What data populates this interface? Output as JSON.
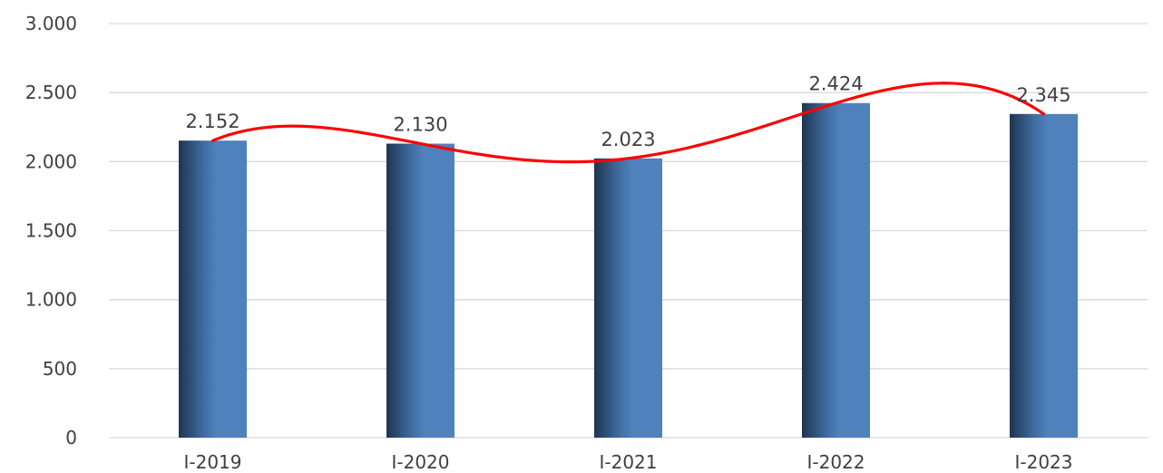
{
  "chart_data": {
    "type": "bar",
    "categories": [
      "I-2019",
      "I-2020",
      "I-2021",
      "I-2022",
      "I-2023"
    ],
    "values": [
      2152,
      2130,
      2023,
      2424,
      2345
    ],
    "data_labels": [
      "2.152",
      "2.130",
      "2.023",
      "2.424",
      "2.345"
    ],
    "y_ticks": [
      0,
      500,
      1000,
      1500,
      2000,
      2500,
      3000
    ],
    "y_tick_labels": [
      "0",
      "500",
      "1.000",
      "1.500",
      "2.000",
      "2.500",
      "3.000"
    ],
    "ylim": [
      0,
      3000
    ],
    "grid": true,
    "legend": "none",
    "trendline": "polynomial",
    "colors": {
      "bar_light": "#4f81bd",
      "bar_dark": "#1f3550",
      "trendline": "#ff0000",
      "grid": "#d9d9d9",
      "text": "#404040"
    }
  }
}
